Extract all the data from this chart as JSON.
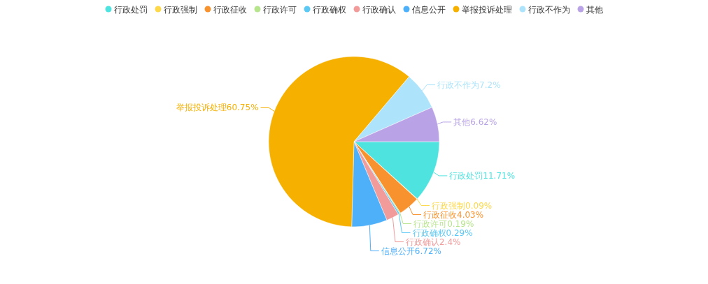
{
  "chart_data": {
    "type": "pie",
    "legend": "top",
    "categories": [
      "行政处罚",
      "行政强制",
      "行政征收",
      "行政许可",
      "行政确权",
      "行政确认",
      "信息公开",
      "举报投诉处理",
      "行政不作为",
      "其他"
    ],
    "values": [
      11.71,
      0.09,
      4.03,
      0.19,
      0.29,
      2.4,
      6.72,
      60.75,
      7.2,
      6.62
    ],
    "value_labels": [
      "行政处罚11.71%",
      "行政强制0.09%",
      "行政征收4.03%",
      "行政许可0.19%",
      "行政确权0.29%",
      "行政确认2.4%",
      "信息公开6.72%",
      "举报投诉处理60.75%",
      "行政不作为7.2%",
      "其他6.62%"
    ],
    "colors": [
      "#4fe3df",
      "#fdd84a",
      "#f7922e",
      "#b7e58e",
      "#5cc9f5",
      "#f29b9b",
      "#4fb0fa",
      "#f5b000",
      "#aee4fb",
      "#b9a3e6"
    ]
  }
}
